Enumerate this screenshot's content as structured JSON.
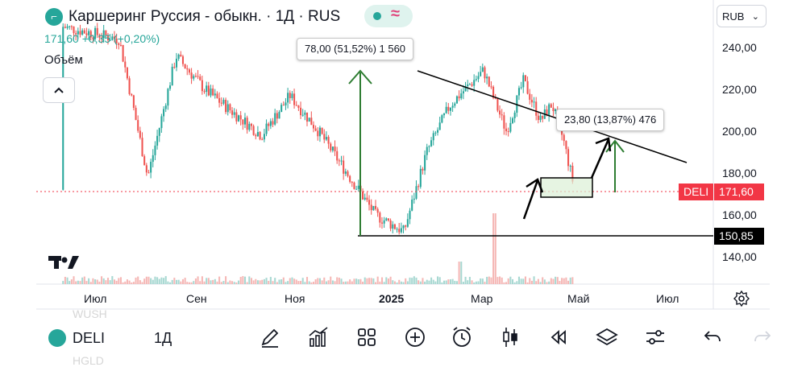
{
  "header": {
    "title": "Каршеринг Руссия - обыкн. · 1Д · RUS",
    "price_line": "171,60  +0,35 (+0,20%)",
    "volume_label": "Объём",
    "collapse_icon": "chevron-up-icon",
    "currency": "RUB"
  },
  "y_axis": {
    "ticks": [
      "240,00",
      "220,00",
      "200,00",
      "180,00",
      "160,00",
      "140,00"
    ]
  },
  "x_axis": {
    "ticks": [
      "Июл",
      "Сен",
      "Ноя",
      "2025",
      "Мар",
      "Май",
      "Июл"
    ]
  },
  "price_tags": {
    "symbol": "DELI",
    "current_price": "171,60",
    "low_price": "150,85"
  },
  "annotations": {
    "measure_main": "78,00 (51,52%) 1 560",
    "measure_target": "23,80 (13,87%) 476"
  },
  "bottom_bar": {
    "symbol": "DELI",
    "timeframe": "1Д",
    "ghost_above": "WUSH",
    "ghost_below": "HGLD",
    "tools": [
      "pencil-icon",
      "indicators-icon",
      "templates-icon",
      "add-icon",
      "alert-clock-icon",
      "candles-icon",
      "replay-icon",
      "layers-icon",
      "settings-sliders-icon",
      "undo-icon",
      "redo-icon"
    ]
  },
  "colors": {
    "up": "#26a69a",
    "down": "#ef5350",
    "price_tag": "#f23645",
    "drawing_green": "#2e7d32",
    "drawing_black": "#000000"
  },
  "chart_data": {
    "type": "candlestick",
    "y_range": [
      130,
      248
    ],
    "series": [
      {
        "t": 0.1,
        "v": 250
      },
      {
        "t": 0.2,
        "v": 244
      },
      {
        "t": 0.25,
        "v": 178
      },
      {
        "t": 0.3,
        "v": 236
      },
      {
        "t": 0.35,
        "v": 220
      },
      {
        "t": 0.4,
        "v": 209
      },
      {
        "t": 0.45,
        "v": 198
      },
      {
        "t": 0.5,
        "v": 217
      },
      {
        "t": 0.55,
        "v": 200
      },
      {
        "t": 0.6,
        "v": 180
      },
      {
        "t": 0.65,
        "v": 160
      },
      {
        "t": 0.7,
        "v": 152
      },
      {
        "t": 0.74,
        "v": 190
      },
      {
        "t": 0.78,
        "v": 212
      },
      {
        "t": 0.8,
        "v": 218
      },
      {
        "t": 0.84,
        "v": 229
      },
      {
        "t": 0.86,
        "v": 214
      },
      {
        "t": 0.88,
        "v": 200
      },
      {
        "t": 0.91,
        "v": 224
      },
      {
        "t": 0.94,
        "v": 205
      },
      {
        "t": 0.96,
        "v": 213
      },
      {
        "t": 0.98,
        "v": 196
      },
      {
        "t": 1.0,
        "v": 172
      }
    ],
    "start_date": "2024-05",
    "end_date": "2025-04",
    "volume_spike": "2025-03"
  }
}
